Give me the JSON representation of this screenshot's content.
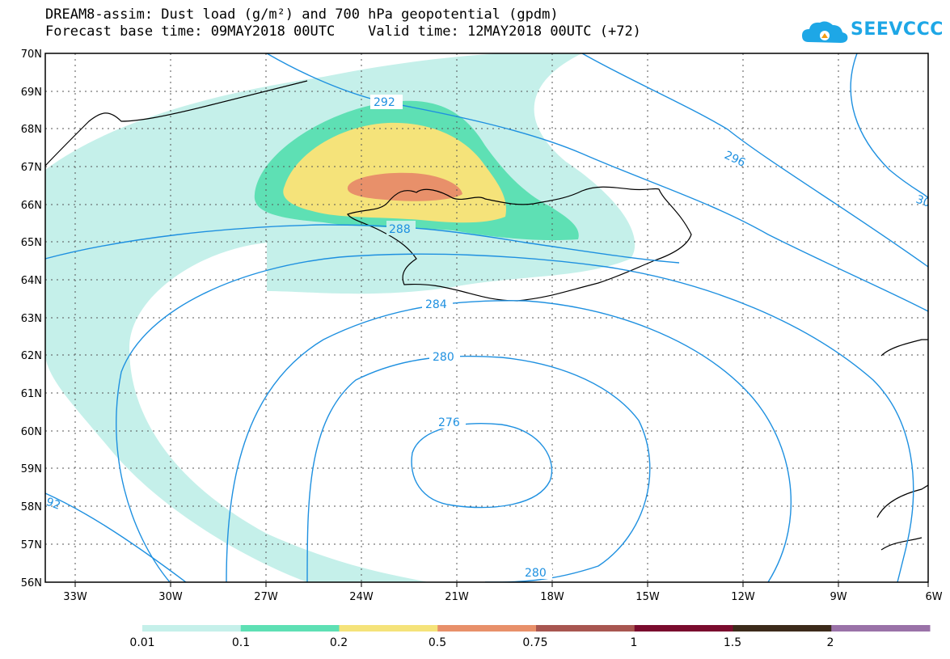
{
  "title_line1": "DREAM8-assim: Dust load (g/m²) and 700 hPa geopotential (gpdm)",
  "title_line2": "Forecast base time: 09MAY2018 00UTC    Valid time: 12MAY2018 00UTC (+72)",
  "logo_text": "SEEVCCC",
  "map": {
    "lat_labels": [
      "70N",
      "69N",
      "68N",
      "67N",
      "66N",
      "65N",
      "64N",
      "63N",
      "62N",
      "61N",
      "60N",
      "59N",
      "58N",
      "57N",
      "56N"
    ],
    "lon_labels": [
      "33W",
      "30W",
      "27W",
      "24W",
      "21W",
      "18W",
      "15W",
      "12W",
      "9W",
      "6W"
    ],
    "contour_labels": [
      "292",
      "296",
      "30",
      "288",
      "284",
      "280",
      "276",
      "280",
      "92"
    ]
  },
  "colorbar": {
    "colors": [
      "#c5f0ea",
      "#5ee0b4",
      "#f5e37a",
      "#e8906a",
      "#a85650",
      "#7a0c2e",
      "#3c2a1a",
      "#9a72a8"
    ],
    "labels": [
      "0.01",
      "0.1",
      "0.2",
      "0.5",
      "0.75",
      "1",
      "1.5",
      "2"
    ]
  }
}
